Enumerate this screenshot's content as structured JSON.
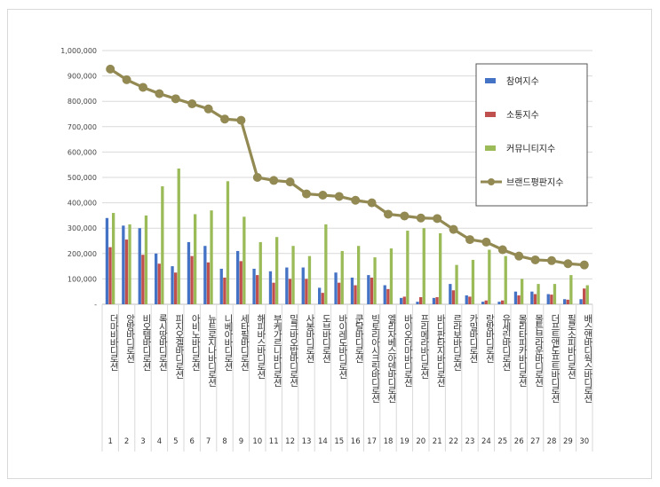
{
  "chart_data": {
    "type": "bar",
    "title": "",
    "xlabel": "",
    "ylabel": "",
    "ylim": [
      0,
      1000000
    ],
    "y_ticks": [
      "-",
      "100,000",
      "200,000",
      "300,000",
      "400,000",
      "500,000",
      "600,000",
      "700,000",
      "800,000",
      "900,000",
      "1,000,000"
    ],
    "y_tick_values": [
      0,
      100000,
      200000,
      300000,
      400000,
      500000,
      600000,
      700000,
      800000,
      900000,
      1000000
    ],
    "grid": true,
    "legend_position": "right",
    "categories": [
      "더마비바디로션",
      "앙방바디로션",
      "비오템바디로션",
      "록시땅바디로션",
      "피지오겔바디로션",
      "아비노바디로션",
      "뉴트로지나바디로션",
      "니베아바디로션",
      "세타필바디로션",
      "해피바스바디로션",
      "부케가르니바디로션",
      "밀크바오밥바디로션",
      "사봉바디로션",
      "도브바디로션",
      "바이레도바디로션",
      "쿤달바디로션",
      "빅토리아시크릿바디로션",
      "엘리자베스아덴바디로션",
      "바이오더마바디로션",
      "프리메라바디로션",
      "바디판타지바디로션",
      "르라보바디로션",
      "카밀바디로션",
      "랑방바디로션",
      "유세린바디로션",
      "몰리타피카바디로션",
      "몰튼브라운바디로션",
      "더프트앤도프트바디로션",
      "필로소피바디로션",
      "배스앤바디웍스바디로션"
    ],
    "indices": [
      "1",
      "2",
      "3",
      "4",
      "5",
      "6",
      "7",
      "8",
      "9",
      "10",
      "11",
      "12",
      "13",
      "14",
      "15",
      "16",
      "17",
      "18",
      "19",
      "20",
      "21",
      "22",
      "23",
      "24",
      "25",
      "26",
      "27",
      "28",
      "29",
      "30"
    ],
    "series": [
      {
        "name": "참여지수",
        "type": "bar",
        "color": "#4472c4",
        "values": [
          340000,
          310000,
          300000,
          200000,
          150000,
          245000,
          230000,
          140000,
          210000,
          140000,
          130000,
          145000,
          145000,
          65000,
          125000,
          105000,
          115000,
          75000,
          25000,
          10000,
          25000,
          80000,
          35000,
          10000,
          10000,
          50000,
          50000,
          40000,
          20000,
          20000
        ]
      },
      {
        "name": "소통지수",
        "type": "bar",
        "color": "#c0504d",
        "values": [
          225000,
          255000,
          195000,
          160000,
          125000,
          190000,
          165000,
          105000,
          170000,
          115000,
          85000,
          100000,
          100000,
          45000,
          85000,
          75000,
          105000,
          60000,
          30000,
          28000,
          28000,
          55000,
          30000,
          15000,
          15000,
          35000,
          40000,
          38000,
          18000,
          62000
        ]
      },
      {
        "name": "커뮤니티지수",
        "type": "bar",
        "color": "#9bbb59",
        "values": [
          360000,
          315000,
          350000,
          465000,
          535000,
          355000,
          370000,
          485000,
          345000,
          245000,
          265000,
          230000,
          190000,
          315000,
          210000,
          230000,
          185000,
          220000,
          290000,
          300000,
          280000,
          155000,
          175000,
          215000,
          190000,
          100000,
          80000,
          80000,
          115000,
          75000
        ]
      },
      {
        "name": "브랜드평판지수",
        "type": "line",
        "color": "#938953",
        "values": [
          927000,
          885000,
          855000,
          830000,
          810000,
          790000,
          770000,
          730000,
          725000,
          500000,
          488000,
          482000,
          435000,
          430000,
          425000,
          410000,
          400000,
          355000,
          348000,
          340000,
          338000,
          295000,
          255000,
          245000,
          215000,
          190000,
          175000,
          172000,
          160000,
          155000
        ]
      }
    ]
  }
}
